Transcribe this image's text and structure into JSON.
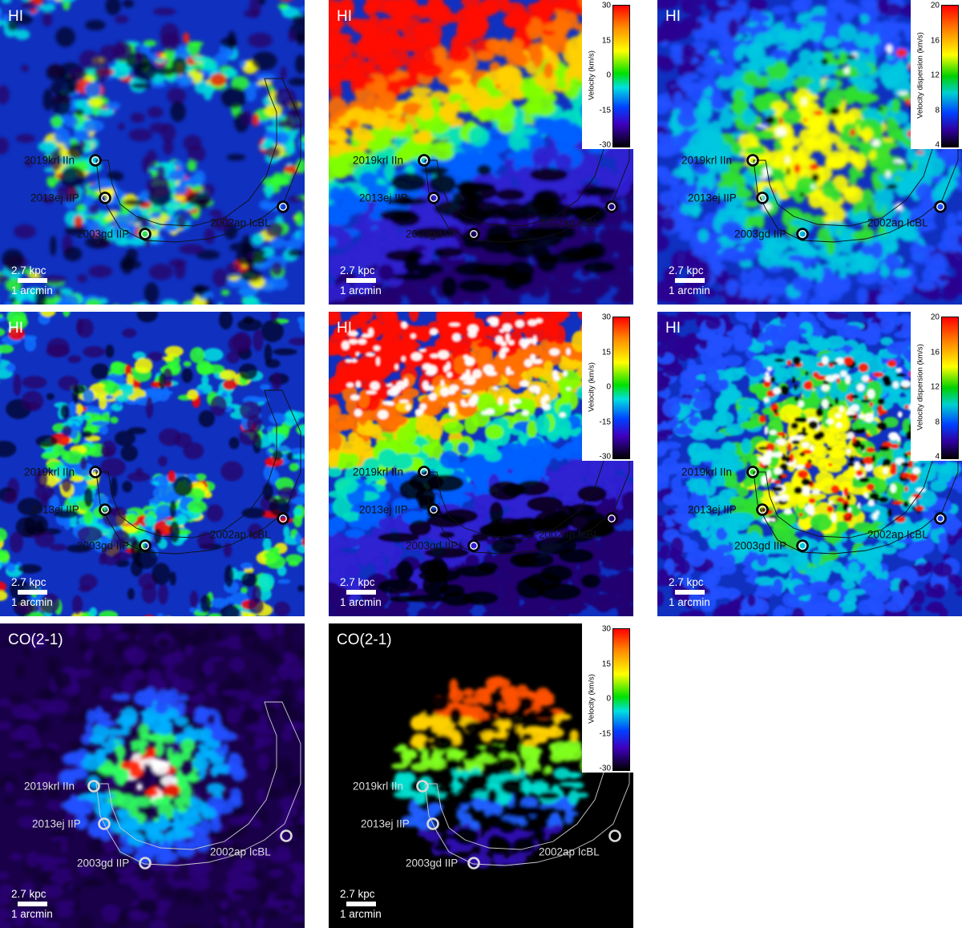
{
  "colorbars": {
    "velocity": {
      "title": "Velocity (km/s)",
      "ticks": [
        "30",
        "15",
        "0",
        "-15",
        "-30"
      ]
    },
    "dispersion": {
      "title": "Velocity dispersion (km/s)",
      "ticks": [
        "20",
        "16",
        "12",
        "8",
        "4"
      ]
    }
  },
  "scalebar": {
    "kpc": "2.7 kpc",
    "arcmin": "1 arcmin"
  },
  "supernovae": [
    {
      "label": "2019krl IIn"
    },
    {
      "label": "2013ej IIP"
    },
    {
      "label": "2003gd IIP"
    },
    {
      "label": "2002ap IcBL"
    }
  ],
  "panels": [
    {
      "tag": "HI",
      "kind": "intensity",
      "colorbar": null
    },
    {
      "tag": "HI",
      "kind": "velocity",
      "colorbar": "velocity"
    },
    {
      "tag": "HI",
      "kind": "dispersion",
      "colorbar": "dispersion"
    },
    {
      "tag": "HI",
      "kind": "intensity",
      "colorbar": null
    },
    {
      "tag": "HI",
      "kind": "velocity",
      "colorbar": "velocity"
    },
    {
      "tag": "HI",
      "kind": "dispersion",
      "colorbar": "dispersion"
    },
    {
      "tag": "CO(2-1)",
      "kind": "co-intensity",
      "colorbar": null
    },
    {
      "tag": "CO(2-1)",
      "kind": "co-velocity",
      "colorbar": "velocity"
    }
  ]
}
